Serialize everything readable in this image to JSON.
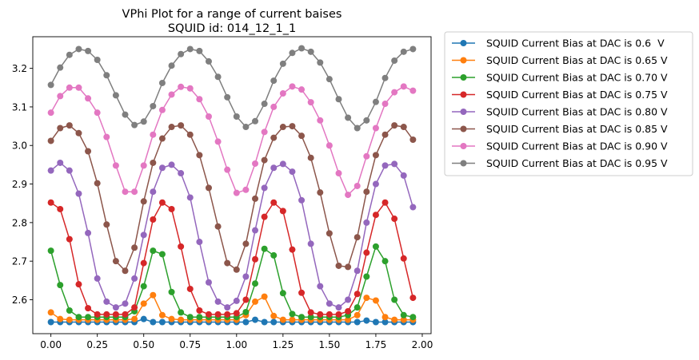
{
  "chart_data": {
    "type": "line",
    "title": "VPhi Plot for a range of current baises",
    "subtitle": "SQUID id: 014_12_1_1",
    "xlabel": "",
    "ylabel": "",
    "xlim": [
      -0.0975,
      2.0475
    ],
    "ylim": [
      2.512,
      3.282
    ],
    "xticks": [
      "0.00",
      "0.25",
      "0.50",
      "0.75",
      "1.00",
      "1.25",
      "1.50",
      "1.75",
      "2.00"
    ],
    "xtick_values": [
      0.0,
      0.25,
      0.5,
      0.75,
      1.0,
      1.25,
      1.5,
      1.75,
      2.0
    ],
    "yticks": [
      "2.6",
      "2.7",
      "2.8",
      "2.9",
      "3.0",
      "3.1",
      "3.2"
    ],
    "ytick_values": [
      2.6,
      2.7,
      2.8,
      2.9,
      3.0,
      3.1,
      3.2
    ],
    "grid": false,
    "legend_position": "outside-right-top",
    "x": [
      0.0,
      0.05,
      0.1,
      0.15,
      0.2,
      0.25,
      0.3,
      0.35,
      0.4,
      0.45,
      0.5,
      0.55,
      0.6,
      0.65,
      0.7,
      0.75,
      0.8,
      0.85,
      0.9,
      0.95,
      1.0,
      1.05,
      1.1,
      1.15,
      1.2,
      1.25,
      1.3,
      1.35,
      1.4,
      1.45,
      1.5,
      1.55,
      1.6,
      1.65,
      1.7,
      1.75,
      1.8,
      1.85,
      1.9,
      1.95
    ],
    "series": [
      {
        "name": "SQUID Current Bias at DAC is 0.6  V",
        "color": "#1f77b4",
        "values": [
          2.542,
          2.542,
          2.542,
          2.542,
          2.542,
          2.542,
          2.542,
          2.542,
          2.542,
          2.542,
          2.55,
          2.542,
          2.542,
          2.542,
          2.542,
          2.542,
          2.542,
          2.542,
          2.542,
          2.542,
          2.542,
          2.542,
          2.548,
          2.542,
          2.542,
          2.542,
          2.542,
          2.542,
          2.542,
          2.542,
          2.542,
          2.542,
          2.542,
          2.542,
          2.546,
          2.542,
          2.542,
          2.542,
          2.542,
          2.542
        ]
      },
      {
        "name": "SQUID Current Bias at DAC is 0.65 V",
        "color": "#ff7f0e",
        "values": [
          2.567,
          2.55,
          2.548,
          2.548,
          2.548,
          2.548,
          2.548,
          2.548,
          2.548,
          2.55,
          2.59,
          2.612,
          2.56,
          2.55,
          2.548,
          2.548,
          2.548,
          2.548,
          2.548,
          2.548,
          2.548,
          2.56,
          2.595,
          2.608,
          2.558,
          2.548,
          2.548,
          2.548,
          2.548,
          2.548,
          2.548,
          2.548,
          2.548,
          2.56,
          2.605,
          2.598,
          2.555,
          2.548,
          2.548,
          2.548
        ]
      },
      {
        "name": "SQUID Current Bias at DAC is 0.70 V",
        "color": "#2ca02c",
        "values": [
          2.727,
          2.638,
          2.572,
          2.555,
          2.555,
          2.555,
          2.555,
          2.555,
          2.555,
          2.57,
          2.635,
          2.727,
          2.718,
          2.62,
          2.567,
          2.555,
          2.555,
          2.555,
          2.555,
          2.555,
          2.555,
          2.568,
          2.642,
          2.732,
          2.715,
          2.617,
          2.563,
          2.555,
          2.555,
          2.555,
          2.555,
          2.555,
          2.56,
          2.58,
          2.66,
          2.738,
          2.7,
          2.6,
          2.56,
          2.555
        ]
      },
      {
        "name": "SQUID Current Bias at DAC is 0.75 V",
        "color": "#d62728",
        "values": [
          2.852,
          2.835,
          2.757,
          2.64,
          2.578,
          2.562,
          2.562,
          2.562,
          2.562,
          2.58,
          2.695,
          2.808,
          2.852,
          2.835,
          2.738,
          2.628,
          2.572,
          2.562,
          2.562,
          2.562,
          2.565,
          2.6,
          2.705,
          2.815,
          2.852,
          2.83,
          2.73,
          2.618,
          2.567,
          2.562,
          2.562,
          2.562,
          2.57,
          2.615,
          2.722,
          2.82,
          2.852,
          2.81,
          2.707,
          2.605
        ]
      },
      {
        "name": "SQUID Current Bias at DAC is 0.80 V",
        "color": "#9467bd",
        "values": [
          2.935,
          2.955,
          2.935,
          2.875,
          2.773,
          2.655,
          2.595,
          2.58,
          2.59,
          2.655,
          2.768,
          2.88,
          2.942,
          2.95,
          2.928,
          2.865,
          2.75,
          2.645,
          2.595,
          2.58,
          2.597,
          2.66,
          2.78,
          2.89,
          2.942,
          2.952,
          2.932,
          2.858,
          2.745,
          2.635,
          2.59,
          2.58,
          2.6,
          2.675,
          2.8,
          2.9,
          2.948,
          2.952,
          2.922,
          2.84
        ]
      },
      {
        "name": "SQUID Current Bias at DAC is 0.85 V",
        "color": "#8c564b",
        "values": [
          3.012,
          3.045,
          3.052,
          3.032,
          2.985,
          2.902,
          2.795,
          2.7,
          2.675,
          2.735,
          2.855,
          2.955,
          3.018,
          3.048,
          3.052,
          3.028,
          2.975,
          2.89,
          2.79,
          2.695,
          2.678,
          2.745,
          2.862,
          2.962,
          3.02,
          3.048,
          3.05,
          3.025,
          2.968,
          2.878,
          2.772,
          2.688,
          2.685,
          2.762,
          2.88,
          2.975,
          3.028,
          3.052,
          3.048,
          3.015
        ]
      },
      {
        "name": "SQUID Current Bias at DAC is 0.90 V",
        "color": "#e377c2",
        "values": [
          3.085,
          3.128,
          3.15,
          3.15,
          3.122,
          3.085,
          3.022,
          2.948,
          2.88,
          2.88,
          2.948,
          3.028,
          3.092,
          3.132,
          3.152,
          3.148,
          3.12,
          3.075,
          3.01,
          2.937,
          2.877,
          2.885,
          2.953,
          3.035,
          3.1,
          3.135,
          3.153,
          3.145,
          3.112,
          3.065,
          3.0,
          2.928,
          2.872,
          2.895,
          2.972,
          3.045,
          3.108,
          3.138,
          3.153,
          3.142
        ]
      },
      {
        "name": "SQUID Current Bias at DAC is 0.95 V",
        "color": "#7f7f7f",
        "values": [
          3.157,
          3.202,
          3.235,
          3.25,
          3.245,
          3.222,
          3.182,
          3.13,
          3.08,
          3.053,
          3.062,
          3.102,
          3.162,
          3.207,
          3.237,
          3.25,
          3.245,
          3.218,
          3.178,
          3.125,
          3.075,
          3.048,
          3.063,
          3.108,
          3.168,
          3.212,
          3.24,
          3.252,
          3.243,
          3.215,
          3.172,
          3.12,
          3.072,
          3.045,
          3.065,
          3.113,
          3.175,
          3.22,
          3.243,
          3.25
        ]
      }
    ]
  }
}
